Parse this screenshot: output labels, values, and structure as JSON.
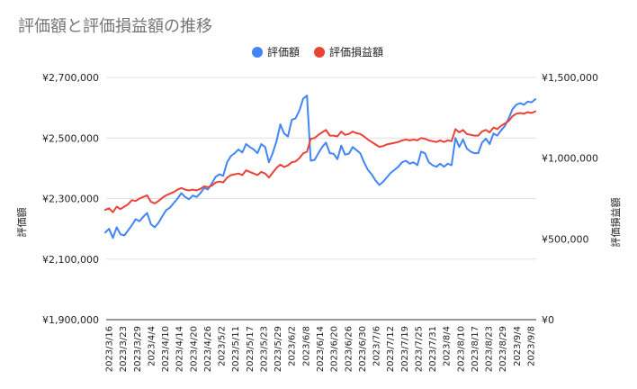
{
  "chart_data": {
    "type": "line",
    "title": "評価額と評価損益額の推移",
    "legend_position": "top",
    "grid": true,
    "ylabel_left": "評価額",
    "ylabel_right": "評価損益額",
    "y_left": {
      "lim": [
        1900000,
        2700000
      ],
      "ticks": [
        1900000,
        2100000,
        2300000,
        2500000,
        2700000
      ],
      "tick_labels": [
        "¥1,900,000",
        "¥2,100,000",
        "¥2,300,000",
        "¥2,500,000",
        "¥2,700,000"
      ]
    },
    "y_right": {
      "lim": [
        0,
        1500000
      ],
      "ticks": [
        0,
        500000,
        1000000,
        1500000
      ],
      "tick_labels": [
        "¥0",
        "¥500,000",
        "¥1,000,000",
        "¥1,500,000"
      ]
    },
    "x_tick_labels": [
      "2023/3/16",
      "2023/3/23",
      "2023/3/29",
      "2023/4/4",
      "2023/4/10",
      "2023/4/14",
      "2023/4/20",
      "2023/4/26",
      "2023/5/2",
      "2023/5/11",
      "2023/5/17",
      "2023/5/23",
      "2023/5/29",
      "2023/6/2",
      "2023/6/8",
      "2023/6/14",
      "2023/6/20",
      "2023/6/26",
      "2023/6/30",
      "2023/7/6",
      "2023/7/12",
      "2023/7/19",
      "2023/7/25",
      "2023/7/31",
      "2023/8/4",
      "2023/8/10",
      "2023/8/17",
      "2023/8/23",
      "2023/8/29",
      "2023/9/4",
      "2023/9/8"
    ],
    "series": [
      {
        "name": "評価額",
        "color": "#4285f4",
        "axis": "left",
        "values": [
          2188000,
          2200000,
          2170000,
          2205000,
          2182000,
          2178000,
          2195000,
          2212000,
          2232000,
          2225000,
          2240000,
          2252000,
          2215000,
          2205000,
          2220000,
          2242000,
          2262000,
          2270000,
          2285000,
          2300000,
          2318000,
          2305000,
          2298000,
          2310000,
          2305000,
          2318000,
          2335000,
          2330000,
          2350000,
          2372000,
          2380000,
          2375000,
          2420000,
          2440000,
          2450000,
          2462000,
          2452000,
          2480000,
          2470000,
          2462000,
          2450000,
          2480000,
          2470000,
          2420000,
          2450000,
          2490000,
          2545000,
          2515000,
          2505000,
          2560000,
          2565000,
          2590000,
          2630000,
          2640000,
          2425000,
          2428000,
          2450000,
          2470000,
          2485000,
          2450000,
          2448000,
          2430000,
          2475000,
          2445000,
          2448000,
          2470000,
          2460000,
          2450000,
          2420000,
          2395000,
          2380000,
          2360000,
          2345000,
          2355000,
          2370000,
          2385000,
          2395000,
          2405000,
          2420000,
          2425000,
          2415000,
          2420000,
          2410000,
          2455000,
          2450000,
          2420000,
          2410000,
          2405000,
          2415000,
          2405000,
          2415000,
          2410000,
          2500000,
          2470000,
          2495000,
          2465000,
          2455000,
          2450000,
          2450000,
          2485000,
          2498000,
          2480000,
          2515000,
          2508000,
          2525000,
          2540000,
          2565000,
          2595000,
          2610000,
          2615000,
          2610000,
          2620000,
          2618000,
          2628000
        ]
      },
      {
        "name": "評価損益額",
        "color": "#ea4335",
        "axis": "right",
        "values": [
          680000,
          690000,
          665000,
          700000,
          685000,
          700000,
          715000,
          740000,
          735000,
          750000,
          760000,
          770000,
          730000,
          720000,
          735000,
          755000,
          770000,
          780000,
          790000,
          805000,
          815000,
          805000,
          800000,
          805000,
          800000,
          810000,
          825000,
          820000,
          830000,
          850000,
          855000,
          850000,
          880000,
          895000,
          900000,
          905000,
          895000,
          925000,
          915000,
          905000,
          895000,
          915000,
          905000,
          880000,
          910000,
          940000,
          960000,
          945000,
          955000,
          975000,
          980000,
          1000000,
          1030000,
          1040000,
          1120000,
          1125000,
          1145000,
          1160000,
          1175000,
          1140000,
          1140000,
          1135000,
          1165000,
          1145000,
          1150000,
          1165000,
          1155000,
          1150000,
          1135000,
          1115000,
          1100000,
          1085000,
          1070000,
          1075000,
          1085000,
          1090000,
          1095000,
          1100000,
          1110000,
          1115000,
          1110000,
          1115000,
          1110000,
          1125000,
          1120000,
          1110000,
          1105000,
          1100000,
          1110000,
          1100000,
          1110000,
          1105000,
          1180000,
          1160000,
          1175000,
          1150000,
          1145000,
          1140000,
          1140000,
          1165000,
          1175000,
          1160000,
          1190000,
          1180000,
          1200000,
          1215000,
          1230000,
          1260000,
          1275000,
          1280000,
          1275000,
          1285000,
          1280000,
          1290000
        ]
      }
    ]
  }
}
